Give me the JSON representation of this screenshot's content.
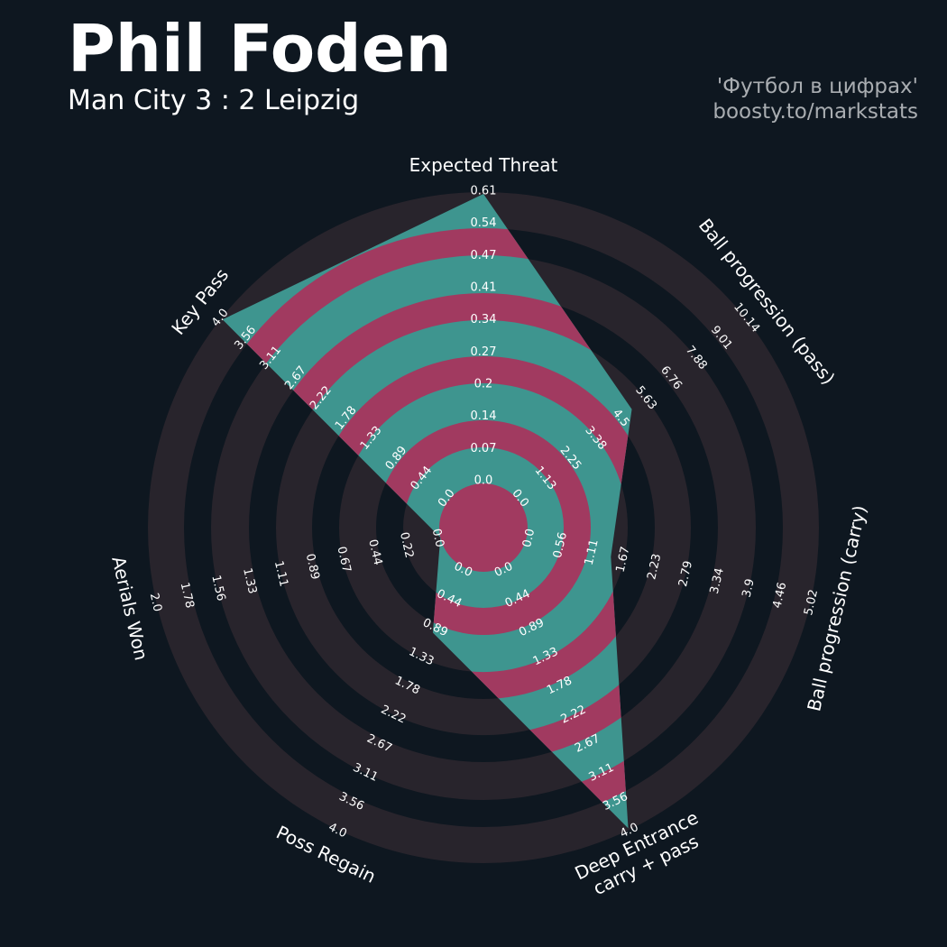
{
  "header": {
    "title": "Phil Foden",
    "subtitle": "Man City 3 : 2 Leipzig",
    "credit_line1": "'Футбол в цифрах'",
    "credit_line2": "boosty.to/markstats"
  },
  "colors": {
    "background": "#0e1720",
    "ring_gray": "#28242c",
    "value_teal": "#3e958f",
    "value_magenta": "#a13a60",
    "text": "#ffffff",
    "credit_text": "#a9adb1"
  },
  "chart_data": {
    "type": "radar",
    "title": "Phil Foden",
    "subtitle": "Man City 3 : 2 Leipzig",
    "params": [
      {
        "label": [
          "Expected Threat"
        ],
        "min": 0.0,
        "max": 0.61,
        "value": 0.61,
        "ticks": [
          "0.0",
          "0.07",
          "0.14",
          "0.2",
          "0.27",
          "0.34",
          "0.41",
          "0.47",
          "0.54",
          "0.61"
        ]
      },
      {
        "label": [
          "Ball progression (pass)"
        ],
        "min": 0.0,
        "max": 10.14,
        "value": 5.1,
        "ticks": [
          "0.0",
          "1.13",
          "2.25",
          "3.38",
          "4.5",
          "5.63",
          "6.76",
          "7.88",
          "9.01",
          "10.14"
        ]
      },
      {
        "label": [
          "Ball progression (carry)"
        ],
        "min": 0.0,
        "max": 5.02,
        "value": 1.5,
        "ticks": [
          "0.0",
          "0.56",
          "1.11",
          "1.67",
          "2.23",
          "2.79",
          "3.34",
          "3.9",
          "4.46",
          "5.02"
        ]
      },
      {
        "label": [
          "Deep Entrance",
          "carry + pass"
        ],
        "min": 0.0,
        "max": 4.0,
        "value": 4.0,
        "ticks": [
          "0.0",
          "0.44",
          "0.89",
          "1.33",
          "1.78",
          "2.22",
          "2.67",
          "3.11",
          "3.56",
          "4.0"
        ]
      },
      {
        "label": [
          "Poss Regain"
        ],
        "min": 0.0,
        "max": 4.0,
        "value": 1.0,
        "ticks": [
          "0.0",
          "0.44",
          "0.89",
          "1.33",
          "1.78",
          "2.22",
          "2.67",
          "3.11",
          "3.56",
          "4.0"
        ]
      },
      {
        "label": [
          "Aerials Won"
        ],
        "min": 0.0,
        "max": 2.0,
        "value": 0.0,
        "ticks": [
          "0.0",
          "0.22",
          "0.44",
          "0.67",
          "0.89",
          "1.11",
          "1.33",
          "1.56",
          "1.78",
          "2.0"
        ]
      },
      {
        "label": [
          "Key Pass"
        ],
        "min": 0.0,
        "max": 4.0,
        "value": 4.0,
        "ticks": [
          "0.0",
          "0.44",
          "0.89",
          "1.33",
          "1.78",
          "2.22",
          "2.67",
          "3.11",
          "3.56",
          "4.0"
        ]
      }
    ]
  }
}
